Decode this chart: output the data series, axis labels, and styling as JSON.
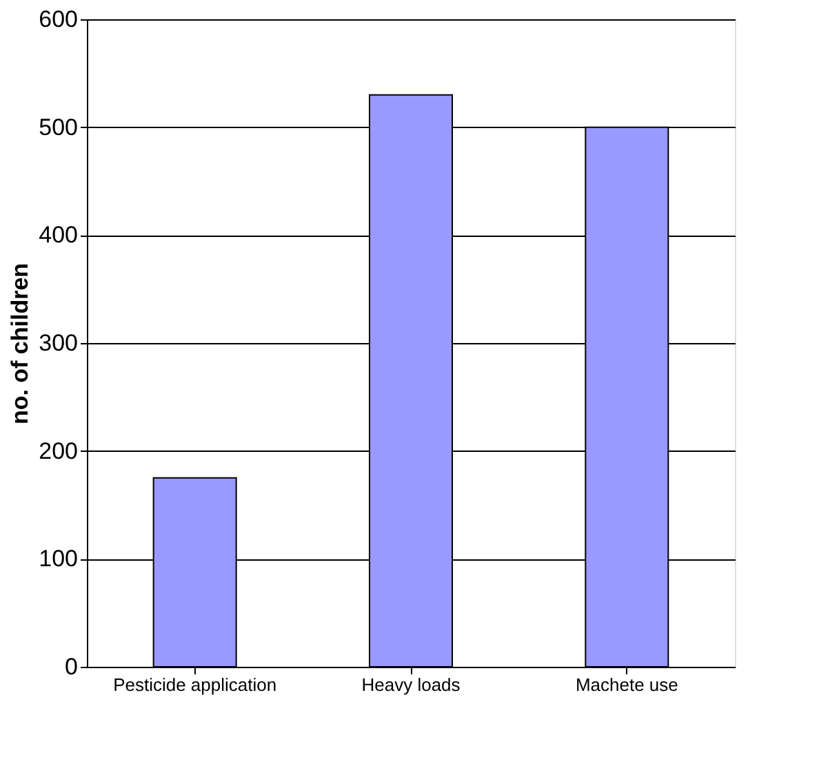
{
  "chart_data": {
    "type": "bar",
    "ylabel": "no. of children",
    "categories": [
      "Pesticide application",
      "Heavy loads",
      "Machete use"
    ],
    "values": [
      175,
      530,
      500
    ],
    "color": "#9999ff",
    "ylim": [
      0,
      600
    ],
    "yticks": [
      0,
      100,
      200,
      300,
      400,
      500,
      600
    ],
    "grid": "y"
  }
}
